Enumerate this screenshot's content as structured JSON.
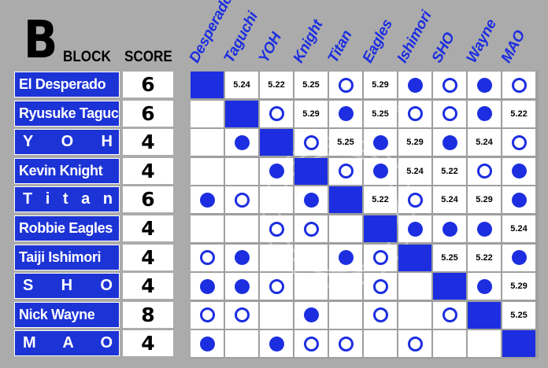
{
  "title": {
    "block_letter": "B",
    "block_word": "BLOCK",
    "score_word": "SCORE"
  },
  "colors": {
    "accent": "#1c2ee0",
    "name_bg": "#1c33d6",
    "background": "#ababab"
  },
  "watermark": {
    "text": "Presents"
  },
  "columns": [
    "Desperado",
    "Taguchi",
    "YOH",
    "Knight",
    "Titan",
    "Eagles",
    "Ishimori",
    "SHO",
    "Wayne",
    "MAO"
  ],
  "rows": [
    {
      "name": "El Desperado",
      "display": "normal",
      "score": "6",
      "cells": [
        "diag",
        "5.24",
        "5.22",
        "5.25",
        "loss",
        "5.29",
        "win",
        "loss",
        "win",
        "loss"
      ]
    },
    {
      "name": "Ryusuke Taguchi",
      "display": "normal",
      "score": "6",
      "cells": [
        "",
        "diag",
        "loss",
        "5.29",
        "win",
        "5.25",
        "loss",
        "loss",
        "win",
        "5.22"
      ]
    },
    {
      "name": "Y O H",
      "display": "spread",
      "score": "4",
      "cells": [
        "",
        "win",
        "diag",
        "loss",
        "5.25",
        "win",
        "5.29",
        "win",
        "5.24",
        "loss"
      ]
    },
    {
      "name": "Kevin Knight",
      "display": "normal",
      "score": "4",
      "cells": [
        "",
        "",
        "win",
        "diag",
        "loss",
        "win",
        "5.24",
        "5.22",
        "loss",
        "win"
      ]
    },
    {
      "name": "T i t a n",
      "display": "spread",
      "score": "6",
      "cells": [
        "win",
        "loss",
        "",
        "win",
        "diag",
        "5.22",
        "loss",
        "5.24",
        "5.29",
        "win"
      ]
    },
    {
      "name": "Robbie Eagles",
      "display": "normal",
      "score": "4",
      "cells": [
        "",
        "",
        "loss",
        "loss",
        "",
        "diag",
        "win",
        "win",
        "win",
        "5.24"
      ]
    },
    {
      "name": "Taiji Ishimori",
      "display": "normal",
      "score": "4",
      "cells": [
        "loss",
        "win",
        "",
        "",
        "win",
        "loss",
        "diag",
        "5.25",
        "5.22",
        "win"
      ]
    },
    {
      "name": "S H O",
      "display": "spread",
      "score": "4",
      "cells": [
        "win",
        "win",
        "loss",
        "",
        "",
        "loss",
        "",
        "diag",
        "win",
        "5.29"
      ]
    },
    {
      "name": "Nick Wayne",
      "display": "normal",
      "score": "8",
      "cells": [
        "loss",
        "loss",
        "",
        "win",
        "",
        "loss",
        "",
        "loss",
        "diag",
        "5.25"
      ]
    },
    {
      "name": "M A O",
      "display": "spread",
      "score": "4",
      "cells": [
        "win",
        "",
        "win",
        "loss",
        "loss",
        "",
        "loss",
        "",
        "",
        "diag"
      ]
    }
  ]
}
